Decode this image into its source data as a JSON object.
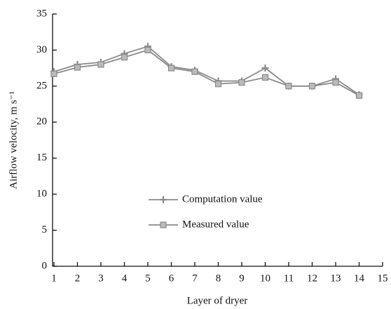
{
  "chart_data": {
    "type": "line",
    "x_label": "Layer of dryer",
    "y_label": "Airflow velocity, m s⁻¹",
    "x": [
      1,
      2,
      3,
      4,
      5,
      6,
      7,
      8,
      9,
      10,
      11,
      12,
      13,
      14
    ],
    "series": [
      {
        "name": "Computation value",
        "color": "#8a8a8a",
        "marker": "plus",
        "values": [
          27,
          28,
          28.3,
          29.5,
          30.5,
          27.7,
          27.2,
          25.7,
          25.7,
          27.5,
          25,
          25,
          26,
          23.8
        ]
      },
      {
        "name": "Measured value",
        "color": "#8a8a8a",
        "marker": "square",
        "values": [
          26.7,
          27.6,
          28,
          29,
          30,
          27.5,
          27,
          25.3,
          25.5,
          26.2,
          25,
          25,
          25.5,
          23.7
        ]
      }
    ],
    "xlim": [
      1,
      15
    ],
    "xticks": [
      1,
      2,
      3,
      4,
      5,
      6,
      7,
      8,
      9,
      10,
      11,
      12,
      13,
      14,
      15
    ],
    "ylim": [
      0,
      35
    ],
    "yticks": [
      0,
      5,
      10,
      15,
      20,
      25,
      30,
      35
    ],
    "grid": false
  }
}
